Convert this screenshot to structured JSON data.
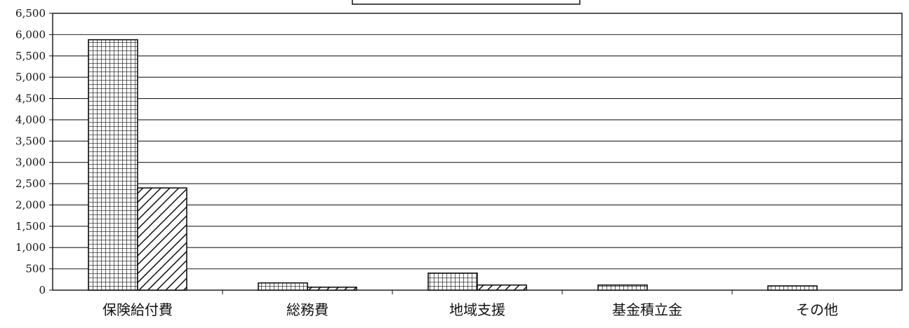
{
  "chart_data": {
    "type": "bar",
    "title": "",
    "xlabel": "",
    "ylabel": "",
    "categories": [
      "保険給付費",
      "総務費",
      "地域支援",
      "基金積立金",
      "その他"
    ],
    "series": [
      {
        "pattern": "grid",
        "values": [
          5880,
          170,
          400,
          120,
          100
        ]
      },
      {
        "pattern": "diagonal-hatch",
        "values": [
          2400,
          70,
          120,
          0,
          0
        ]
      }
    ],
    "ylim": [
      0,
      6500
    ],
    "yticks": [
      "0",
      "500",
      "1,000",
      "1,500",
      "2,000",
      "2,500",
      "3,000",
      "3,500",
      "4,000",
      "4,500",
      "5,000",
      "5,500",
      "6,000",
      "6,500"
    ],
    "grid": true,
    "legend": "top-center"
  }
}
